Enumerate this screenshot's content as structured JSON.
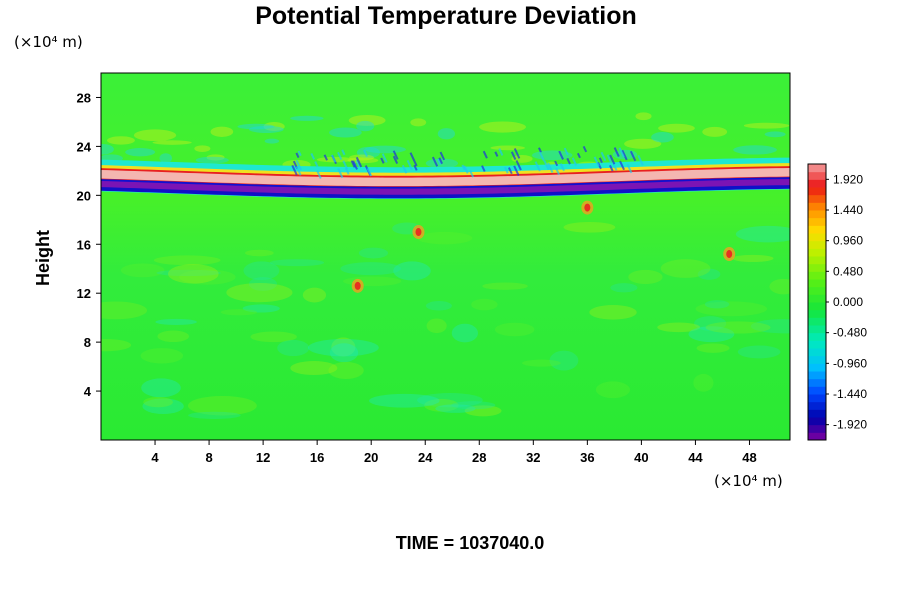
{
  "chart_data": {
    "type": "heatmap",
    "title": "Potential Temperature Deviation",
    "xlabel": "",
    "ylabel": "Height",
    "x_unit": "(×10⁴ m)",
    "y_unit": "(×10⁴ m)",
    "xlim": [
      0,
      51
    ],
    "ylim": [
      0,
      30
    ],
    "x_ticks": [
      "4",
      "8",
      "12",
      "16",
      "20",
      "24",
      "28",
      "32",
      "36",
      "40",
      "44",
      "48"
    ],
    "y_ticks": [
      "4",
      "8",
      "12",
      "16",
      "20",
      "24",
      "28"
    ],
    "colorbar": {
      "range": [
        -2.16,
        2.16
      ],
      "labels": [
        "1.920",
        "1.440",
        "0.960",
        "0.480",
        "0.000",
        "-0.480",
        "-0.960",
        "-1.440",
        "-1.920"
      ]
    },
    "features": [
      {
        "kind": "positive band",
        "x_range": [
          0,
          51
        ],
        "height": 21.4,
        "value": 1.92
      },
      {
        "kind": "negative band",
        "x_range": [
          0,
          51
        ],
        "height": 20.6,
        "value": -1.92
      },
      {
        "kind": "background",
        "value": 0.0
      }
    ],
    "caption": "TIME = 1037040.0"
  },
  "colors": {
    "background_field": "#22ee22",
    "band_positive": "#f4b6b0",
    "band_negative": "#7b14b4"
  }
}
